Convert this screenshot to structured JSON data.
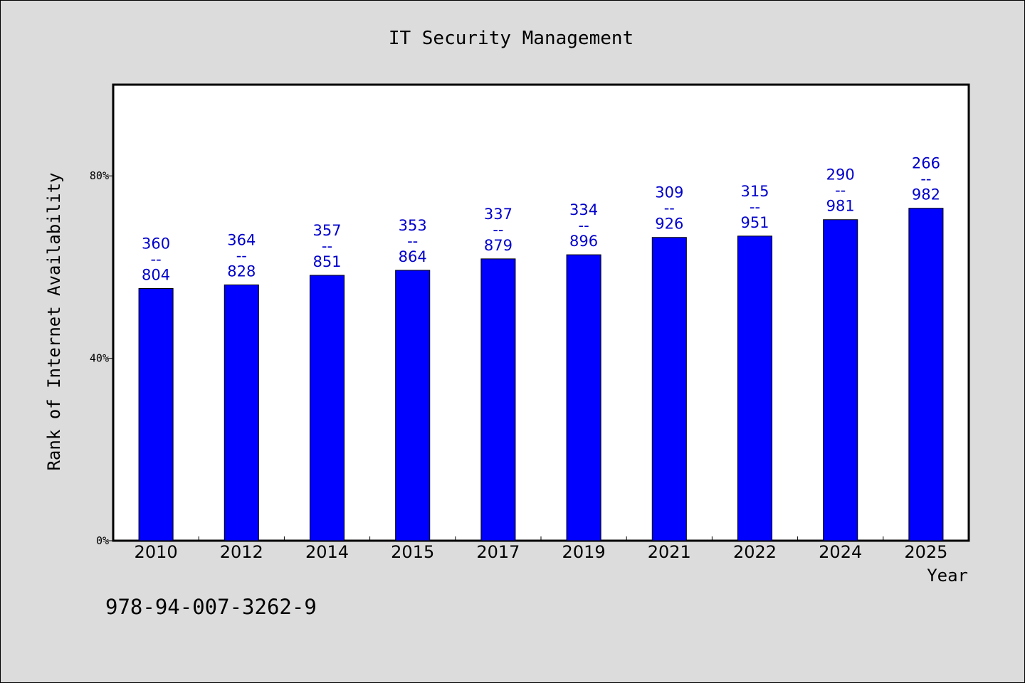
{
  "chart_data": {
    "type": "bar",
    "title": "IT Security Management",
    "xlabel": "Year",
    "ylabel": "Rank of Internet Availability",
    "categories": [
      "2010",
      "2012",
      "2014",
      "2015",
      "2017",
      "2019",
      "2021",
      "2022",
      "2024",
      "2025"
    ],
    "values": [
      55.3,
      56.1,
      58.2,
      59.3,
      61.8,
      62.7,
      66.5,
      66.8,
      70.4,
      72.9
    ],
    "value_unit": "%",
    "bar_labels": [
      {
        "top": "360",
        "sep": "--",
        "bottom": "804"
      },
      {
        "top": "364",
        "sep": "--",
        "bottom": "828"
      },
      {
        "top": "357",
        "sep": "--",
        "bottom": "851"
      },
      {
        "top": "353",
        "sep": "--",
        "bottom": "864"
      },
      {
        "top": "337",
        "sep": "--",
        "bottom": "879"
      },
      {
        "top": "334",
        "sep": "--",
        "bottom": "896"
      },
      {
        "top": "309",
        "sep": "--",
        "bottom": "926"
      },
      {
        "top": "315",
        "sep": "--",
        "bottom": "951"
      },
      {
        "top": "290",
        "sep": "--",
        "bottom": "981"
      },
      {
        "top": "266",
        "sep": "--",
        "bottom": "982"
      }
    ],
    "yticks": [
      0,
      40,
      80
    ],
    "ytick_labels": [
      "0%",
      "40%",
      "80%"
    ],
    "ylim": [
      0,
      100
    ],
    "grid": false,
    "bar_color": "#0000ff",
    "label_color": "#0000cc"
  },
  "footer": {
    "text": "978-94-007-3262-9"
  }
}
